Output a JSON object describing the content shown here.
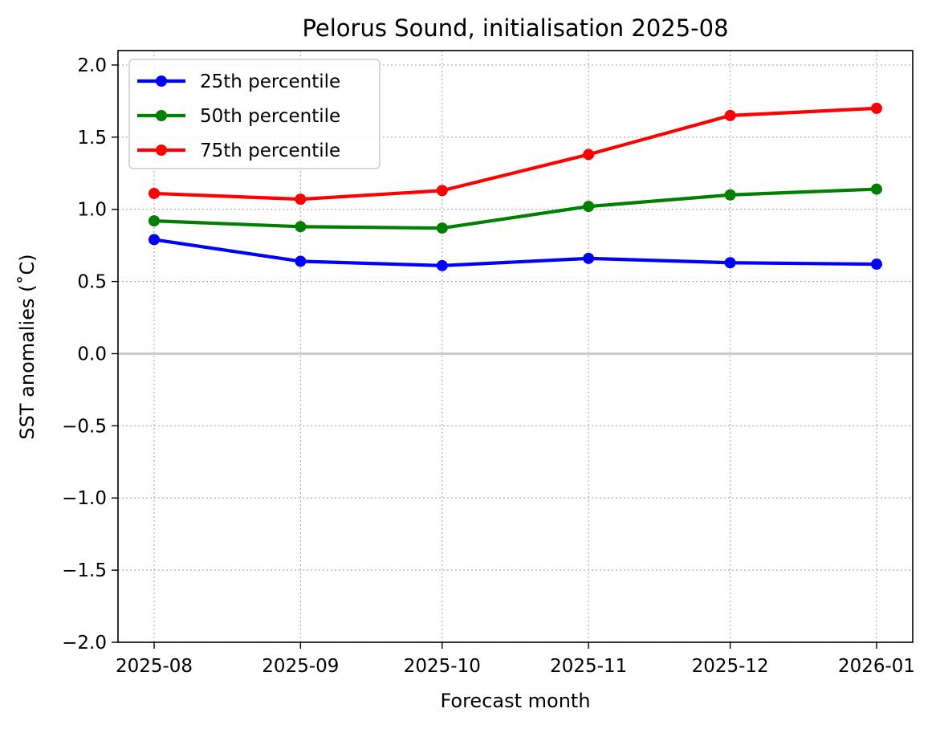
{
  "chart_data": {
    "type": "line",
    "title": "Pelorus Sound, initialisation 2025-08",
    "xlabel": "Forecast month",
    "ylabel": "SST anomalies (˚C)",
    "categories": [
      "2025-08",
      "2025-09",
      "2025-10",
      "2025-11",
      "2025-12",
      "2026-01"
    ],
    "x_dates": [
      "2025-08-01",
      "2025-09-01",
      "2025-10-01",
      "2025-11-01",
      "2025-12-01",
      "2026-01-01"
    ],
    "ylim": [
      -2.0,
      2.1
    ],
    "yticks": [
      "−2.0",
      "−1.5",
      "−1.0",
      "−0.5",
      "0.0",
      "0.5",
      "1.0",
      "1.5",
      "2.0"
    ],
    "ytick_values": [
      -2.0,
      -1.5,
      -1.0,
      -0.5,
      0.0,
      0.5,
      1.0,
      1.5,
      2.0
    ],
    "grid": true,
    "legend_position": "top-left",
    "zero_line_color": "#cccccc",
    "series": [
      {
        "name": "25th percentile",
        "color": "#0000ff",
        "values": [
          0.79,
          0.64,
          0.61,
          0.66,
          0.63,
          0.62
        ]
      },
      {
        "name": "50th percentile",
        "color": "#008000",
        "values": [
          0.92,
          0.88,
          0.87,
          1.02,
          1.1,
          1.14
        ]
      },
      {
        "name": "75th percentile",
        "color": "#ff0000",
        "values": [
          1.11,
          1.07,
          1.13,
          1.38,
          1.65,
          1.7
        ]
      }
    ]
  }
}
